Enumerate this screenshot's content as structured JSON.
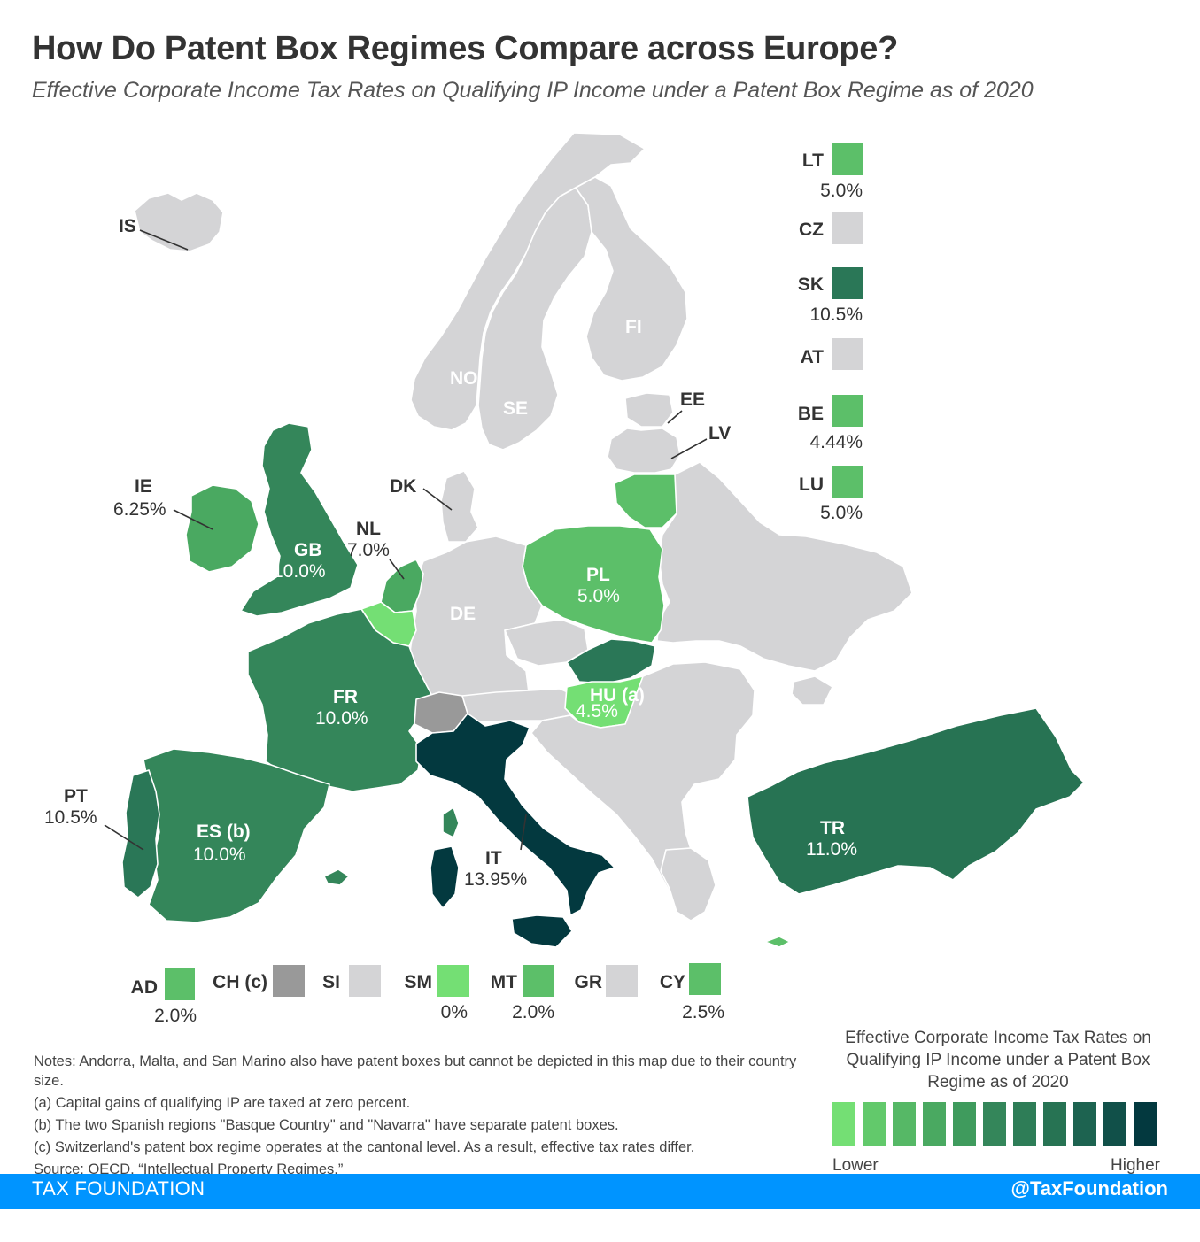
{
  "title": "How Do Patent Box Regimes Compare across Europe?",
  "subtitle": "Effective Corporate Income Tax Rates on Qualifying IP Income under a Patent Box Regime as of 2020",
  "colors": {
    "no_regime": "#d4d4d6",
    "cantonal": "#999999",
    "shade_0_2": "#74df74",
    "shade_2_5": "#5cbf69",
    "shade_6_7": "#4aa961",
    "shade_10": "#34865a",
    "shade_10_5": "#2a7757",
    "shade_11": "#277353",
    "shade_13_95": "#03393f"
  },
  "map_labels": {
    "IS": {
      "code": "IS",
      "rate": ""
    },
    "NO": {
      "code": "NO",
      "rate": ""
    },
    "SE": {
      "code": "SE",
      "rate": ""
    },
    "FI": {
      "code": "FI",
      "rate": ""
    },
    "EE": {
      "code": "EE",
      "rate": ""
    },
    "LV": {
      "code": "LV",
      "rate": ""
    },
    "DK": {
      "code": "DK",
      "rate": ""
    },
    "IE": {
      "code": "IE",
      "rate": "6.25%"
    },
    "GB": {
      "code": "GB",
      "rate": "10.0%"
    },
    "NL": {
      "code": "NL",
      "rate": "7.0%"
    },
    "PL": {
      "code": "PL",
      "rate": "5.0%"
    },
    "DE": {
      "code": "DE",
      "rate": ""
    },
    "FR": {
      "code": "FR",
      "rate": "10.0%"
    },
    "HU": {
      "code": "HU (a)",
      "rate": "4.5%"
    },
    "PT": {
      "code": "PT",
      "rate": "10.5%"
    },
    "ES": {
      "code": "ES (b)",
      "rate": "10.0%"
    },
    "IT": {
      "code": "IT",
      "rate": "13.95%"
    },
    "TR": {
      "code": "TR",
      "rate": "11.0%"
    }
  },
  "right_legend": [
    {
      "code": "LT",
      "rate": "5.0%"
    },
    {
      "code": "CZ",
      "rate": ""
    },
    {
      "code": "SK",
      "rate": "10.5%"
    },
    {
      "code": "AT",
      "rate": ""
    },
    {
      "code": "BE",
      "rate": "4.44%"
    },
    {
      "code": "LU",
      "rate": "5.0%"
    }
  ],
  "bottom_legend": [
    {
      "code": "AD",
      "rate": "2.0%"
    },
    {
      "code": "CH (c)",
      "rate": ""
    },
    {
      "code": "SI",
      "rate": ""
    },
    {
      "code": "SM",
      "rate": "0%"
    },
    {
      "code": "MT",
      "rate": "2.0%"
    },
    {
      "code": "GR",
      "rate": ""
    },
    {
      "code": "CY",
      "rate": "2.5%"
    }
  ],
  "notes": [
    "Notes: Andorra, Malta, and San Marino also have patent boxes but cannot be depicted in this map due to their country size.",
    "(a) Capital gains of qualifying IP are taxed at zero percent.",
    "(b) The two Spanish regions \"Basque Country\" and \"Navarra\" have separate patent boxes.",
    "(c) Switzerland's patent box regime operates at the cantonal level. As a result, effective tax rates differ.",
    "Source: OECD, “Intellectual Property Regimes.”"
  ],
  "scale": {
    "title": "Effective Corporate Income Tax Rates on Qualifying IP Income under a Patent Box Regime as of 2020",
    "low_label": "Lower",
    "high_label": "Higher",
    "steps": [
      "#74df74",
      "#62c96b",
      "#56b866",
      "#4aa961",
      "#3f9b5d",
      "#34865a",
      "#2e7d57",
      "#277353",
      "#1d6350",
      "#115049",
      "#03393f"
    ]
  },
  "footer": {
    "left": "TAX FOUNDATION",
    "right": "@TaxFoundation"
  }
}
